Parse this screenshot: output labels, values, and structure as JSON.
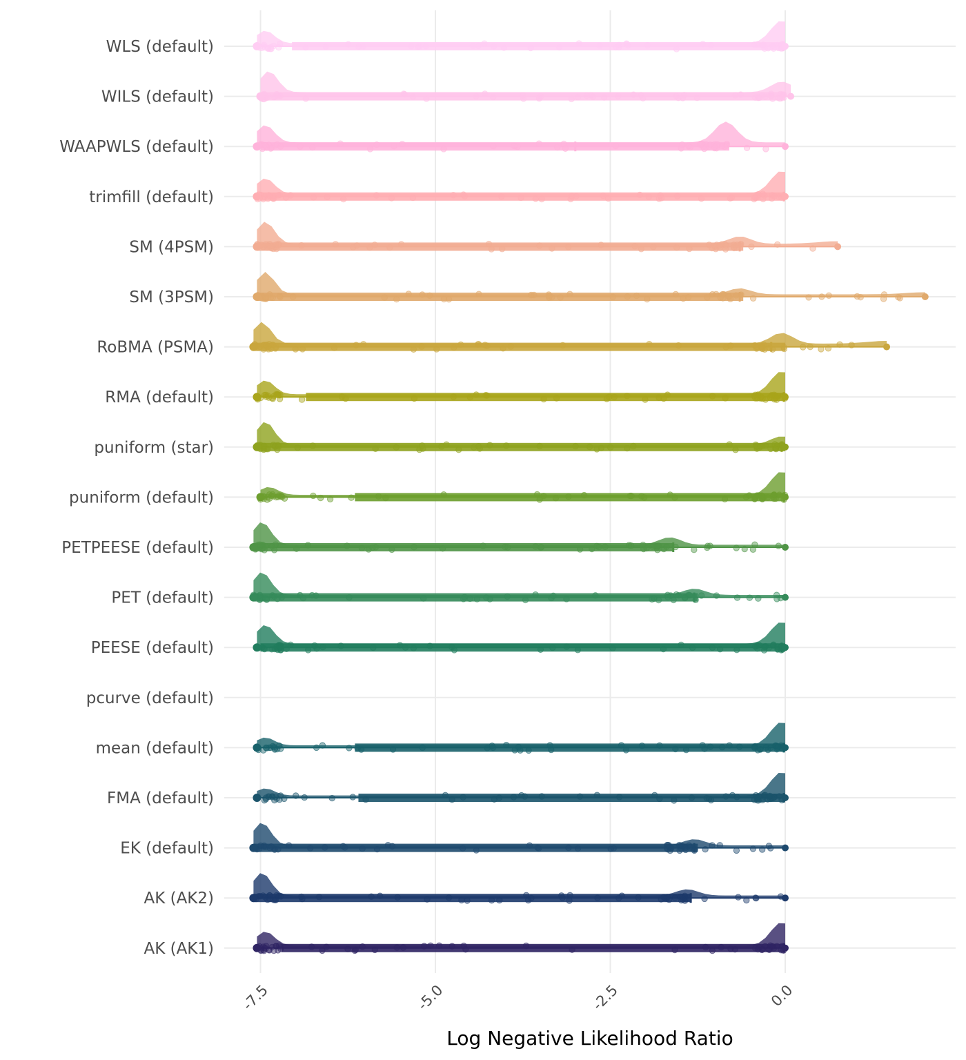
{
  "chart_data": {
    "type": "raincloud",
    "title": "",
    "xlabel": "Log Negative Likelihood Ratio",
    "ylabel": "",
    "xlim": [
      -7.6,
      2.45
    ],
    "x_ticks": [
      -7.5,
      -5.0,
      -2.5,
      0.0
    ],
    "x_tick_labels": [
      "-7.5",
      "-5.0",
      "-2.5",
      "0.0"
    ],
    "grid": true,
    "categories": [
      {
        "label": "WLS (default)",
        "color": "#ffcdf3",
        "min": -7.55,
        "q1": -7.05,
        "median": -0.03,
        "q3": 0.0,
        "max": 0.0,
        "lower_peak": 0.25,
        "upper_peak": 0.45
      },
      {
        "label": "WILS (default)",
        "color": "#ffc4ea",
        "min": -7.5,
        "q1": -7.5,
        "median": -0.05,
        "q3": 0.0,
        "max": 0.08,
        "lower_peak": 0.3,
        "upper_peak": 0.15
      },
      {
        "label": "WAAPWLS (default)",
        "color": "#ffb3db",
        "min": -7.55,
        "q1": -7.5,
        "median": -3.0,
        "q3": -0.8,
        "max": 0.0,
        "lower_peak": 0.25,
        "upper_peak": 0.3
      },
      {
        "label": "trimfill (default)",
        "color": "#ffaeb3",
        "min": -7.55,
        "q1": -7.5,
        "median": -0.02,
        "q3": 0.0,
        "max": 0.0,
        "lower_peak": 0.3,
        "upper_peak": 0.45
      },
      {
        "label": "SM (4PSM)",
        "color": "#f2ac92",
        "min": -7.55,
        "q1": -7.55,
        "median": -0.65,
        "q3": -0.6,
        "max": 0.75,
        "lower_peak": 0.45,
        "upper_peak": 0.15
      },
      {
        "label": "SM (3PSM)",
        "color": "#e0a96b",
        "min": -7.55,
        "q1": -7.55,
        "median": -0.65,
        "q3": -0.6,
        "max": 2.0,
        "lower_peak": 0.55,
        "upper_peak": 0.15
      },
      {
        "label": "RoBMA (PSMA)",
        "color": "#c9a63d",
        "min": -7.6,
        "q1": -7.6,
        "median": -0.2,
        "q3": 0.0,
        "max": 1.45,
        "lower_peak": 0.4,
        "upper_peak": 0.2
      },
      {
        "label": "RMA (default)",
        "color": "#a9a51b",
        "min": -7.55,
        "q1": -6.85,
        "median": -0.02,
        "q3": 0.0,
        "max": 0.0,
        "lower_peak": 0.3,
        "upper_peak": 0.5
      },
      {
        "label": "puniform (star)",
        "color": "#8ea21e",
        "min": -7.55,
        "q1": -7.55,
        "median": -0.05,
        "q3": 0.0,
        "max": 0.0,
        "lower_peak": 0.55,
        "upper_peak": 0.2
      },
      {
        "label": "puniform (default)",
        "color": "#6d9e2e",
        "min": -7.5,
        "q1": -6.15,
        "median": -0.02,
        "q3": 0.0,
        "max": 0.0,
        "lower_peak": 0.2,
        "upper_peak": 0.6
      },
      {
        "label": "PETPEESE (default)",
        "color": "#4f9446",
        "min": -7.6,
        "q1": -7.6,
        "median": -1.6,
        "q3": -1.6,
        "max": 0.0,
        "lower_peak": 0.55,
        "upper_peak": 0.18
      },
      {
        "label": "PET (default)",
        "color": "#358b5a",
        "min": -7.6,
        "q1": -7.6,
        "median": -1.3,
        "q3": -1.25,
        "max": 0.0,
        "lower_peak": 0.55,
        "upper_peak": 0.15
      },
      {
        "label": "PEESE (default)",
        "color": "#217d5e",
        "min": -7.55,
        "q1": -7.5,
        "median": -0.05,
        "q3": 0.0,
        "max": 0.0,
        "lower_peak": 0.3,
        "upper_peak": 0.35
      },
      {
        "label": "pcurve (default)",
        "color": "#1a6f5d",
        "min": null,
        "q1": null,
        "median": null,
        "q3": null,
        "max": null,
        "lower_peak": 0.0,
        "upper_peak": 0.0
      },
      {
        "label": "mean (default)",
        "color": "#18616a",
        "min": -7.55,
        "q1": -6.15,
        "median": -0.02,
        "q3": 0.0,
        "max": 0.0,
        "lower_peak": 0.2,
        "upper_peak": 0.6
      },
      {
        "label": "FMA (default)",
        "color": "#1b546b",
        "min": -7.55,
        "q1": -6.1,
        "median": -0.02,
        "q3": 0.0,
        "max": 0.0,
        "lower_peak": 0.18,
        "upper_peak": 0.6
      },
      {
        "label": "EK (default)",
        "color": "#1e4a6e",
        "min": -7.6,
        "q1": -7.6,
        "median": -1.3,
        "q3": -1.25,
        "max": 0.0,
        "lower_peak": 0.55,
        "upper_peak": 0.15
      },
      {
        "label": "AK (AK2)",
        "color": "#1d3a6b",
        "min": -7.6,
        "q1": -7.6,
        "median": -1.35,
        "q3": -1.35,
        "max": 0.0,
        "lower_peak": 0.55,
        "upper_peak": 0.15
      },
      {
        "label": "AK (AK1)",
        "color": "#2f2463",
        "min": -7.55,
        "q1": -7.2,
        "median": -0.02,
        "q3": 0.0,
        "max": 0.0,
        "lower_peak": 0.3,
        "upper_peak": 0.5
      }
    ]
  }
}
